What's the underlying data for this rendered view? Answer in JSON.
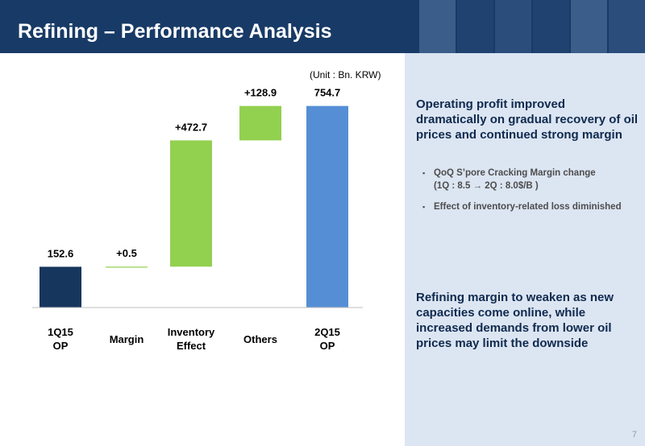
{
  "header": {
    "title": "Refining – Performance Analysis"
  },
  "unit_label": "(Unit : Bn. KRW)",
  "chart_data": {
    "type": "bar",
    "subtype": "waterfall",
    "categories": [
      "1Q15\nOP",
      "Margin",
      "Inventory\nEffect",
      "Others",
      "2Q15\nOP"
    ],
    "values": [
      152.6,
      0.5,
      472.7,
      128.9,
      754.7
    ],
    "labels": [
      "152.6",
      "+0.5",
      "+472.7",
      "+128.9",
      "754.7"
    ],
    "bar_kind": [
      "total",
      "delta",
      "delta",
      "delta",
      "total"
    ],
    "colors": [
      "#17365d",
      "#92d050",
      "#92d050",
      "#92d050",
      "#558ed5"
    ],
    "ylim": [
      0,
      850
    ],
    "grid": false,
    "unit": "Bn. KRW"
  },
  "sidebar": {
    "headline": "Operating profit improved dramatically on gradual recovery of oil prices and continued strong margin",
    "bullets": [
      {
        "lines": [
          "QoQ S’pore Cracking Margin change",
          "(1Q : 8.5 → 2Q : 8.0$/B )"
        ]
      },
      {
        "lines": [
          "Effect of inventory-related loss diminished"
        ]
      }
    ],
    "outlook": "Refining margin to weaken as new capacities come online,  while increased demands from lower oil prices may limit the downside"
  },
  "page_number": "7",
  "bullet_marker": "▪",
  "colors": {
    "header_bg": "#183a66",
    "side_bg": "#dce5f2",
    "heading_text": "#0f2a4e"
  }
}
